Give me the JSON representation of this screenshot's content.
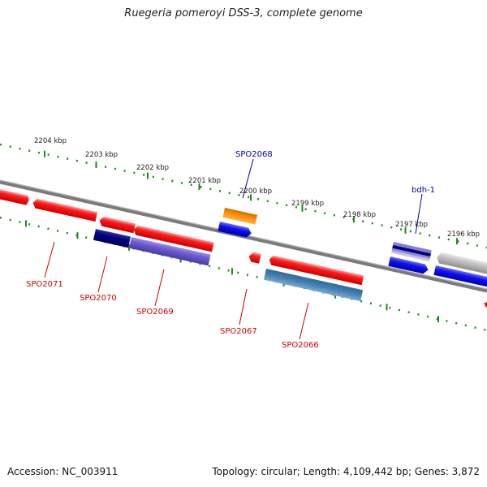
{
  "title": "Ruegeria pomeroyi DSS-3, complete genome",
  "footer": {
    "accession": "Accession: NC_003911",
    "summary": "Topology: circular; Length: 4,109,442 bp; Genes: 3,872"
  },
  "ticks": [
    {
      "label": "2204 kbp"
    },
    {
      "label": "2203 kbp"
    },
    {
      "label": "2202 kbp"
    },
    {
      "label": "2201 kbp"
    },
    {
      "label": "2200 kbp"
    },
    {
      "label": "2199 kbp"
    },
    {
      "label": "2198 kbp"
    },
    {
      "label": "2197 kbp"
    },
    {
      "label": "2196 kbp"
    }
  ],
  "gene_labels": [
    {
      "label": "SPO2068",
      "color": "#0000aa"
    },
    {
      "label": "bdh-1",
      "color": "#0000aa"
    },
    {
      "label": "SPO2071",
      "color": "#cc0000"
    },
    {
      "label": "SPO2070",
      "color": "#cc0000"
    },
    {
      "label": "SPO2069",
      "color": "#cc0000"
    },
    {
      "label": "SPO2067",
      "color": "#cc0000"
    },
    {
      "label": "SPO2066",
      "color": "#cc0000"
    }
  ],
  "colors": {
    "backbone": "#8a8a8a",
    "tick": "#1f8a1f",
    "red_feature": "#ee1111",
    "blue_feature": "#1010ee",
    "orange_feature": "#ff8c00",
    "navy_feature": "#000080",
    "slate_feature": "#6a5acd",
    "steel_feature": "#4682b4",
    "gray_feature": "#b0b0b0"
  }
}
